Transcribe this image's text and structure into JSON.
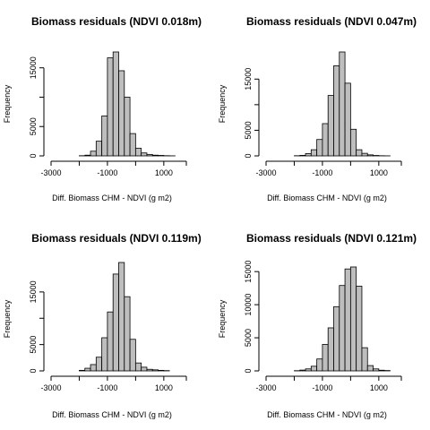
{
  "chart_data": [
    {
      "type": "bar",
      "title": "Biomass residuals (NDVI 0.018m)",
      "xlabel": "Diff. Biomass CHM - NDVI (g m2)",
      "ylabel": "Frequency",
      "bin_width": 200,
      "x_start": -2000,
      "values": [
        30,
        120,
        800,
        2500,
        6800,
        16700,
        17700,
        14500,
        10000,
        3800,
        1300,
        500,
        250,
        120,
        80,
        30,
        10,
        0
      ],
      "xticks": [
        -3000,
        -1000,
        1000
      ],
      "xlim": [
        -3000,
        1800
      ],
      "yticks": [
        0,
        5000,
        15000
      ],
      "ylim": [
        0,
        17700
      ]
    },
    {
      "type": "bar",
      "title": "Biomass residuals (NDVI 0.047m)",
      "xlabel": "Diff. Biomass CHM - NDVI (g m2)",
      "ylabel": "Frequency",
      "bin_width": 200,
      "x_start": -2000,
      "values": [
        30,
        100,
        450,
        1200,
        3200,
        6300,
        11800,
        17600,
        20300,
        14200,
        5200,
        1200,
        500,
        200,
        80,
        30,
        10,
        0
      ],
      "xticks": [
        -3000,
        -1000,
        1000
      ],
      "xlim": [
        -3000,
        1800
      ],
      "yticks": [
        0,
        5000,
        15000
      ],
      "ylim": [
        0,
        20300
      ]
    },
    {
      "type": "bar",
      "title": "Biomass residuals (NDVI 0.119m)",
      "xlabel": "Diff. Biomass CHM - NDVI (g m2)",
      "ylabel": "Frequency",
      "bin_width": 200,
      "x_start": -2000,
      "values": [
        100,
        500,
        1200,
        2600,
        6300,
        11200,
        18400,
        20600,
        14100,
        6000,
        1500,
        700,
        300,
        200,
        100,
        50
      ],
      "xticks": [
        -3000,
        -1000,
        1000
      ],
      "xlim": [
        -3000,
        1800
      ],
      "yticks": [
        0,
        5000,
        15000
      ],
      "ylim": [
        0,
        20600
      ]
    },
    {
      "type": "bar",
      "title": "Biomass residuals (NDVI 0.121m)",
      "xlabel": "Diff. Biomass CHM - NDVI (g m2)",
      "ylabel": "Frequency",
      "bin_width": 200,
      "x_start": -2000,
      "values": [
        30,
        120,
        300,
        700,
        1800,
        4000,
        6500,
        9700,
        12900,
        15400,
        15700,
        12800,
        3500,
        800,
        300,
        100,
        50
      ],
      "xticks": [
        -3000,
        -1000,
        1000
      ],
      "xlim": [
        -3000,
        1800
      ],
      "yticks": [
        0,
        5000,
        10000,
        15000
      ],
      "ylim": [
        0,
        15700
      ]
    }
  ]
}
